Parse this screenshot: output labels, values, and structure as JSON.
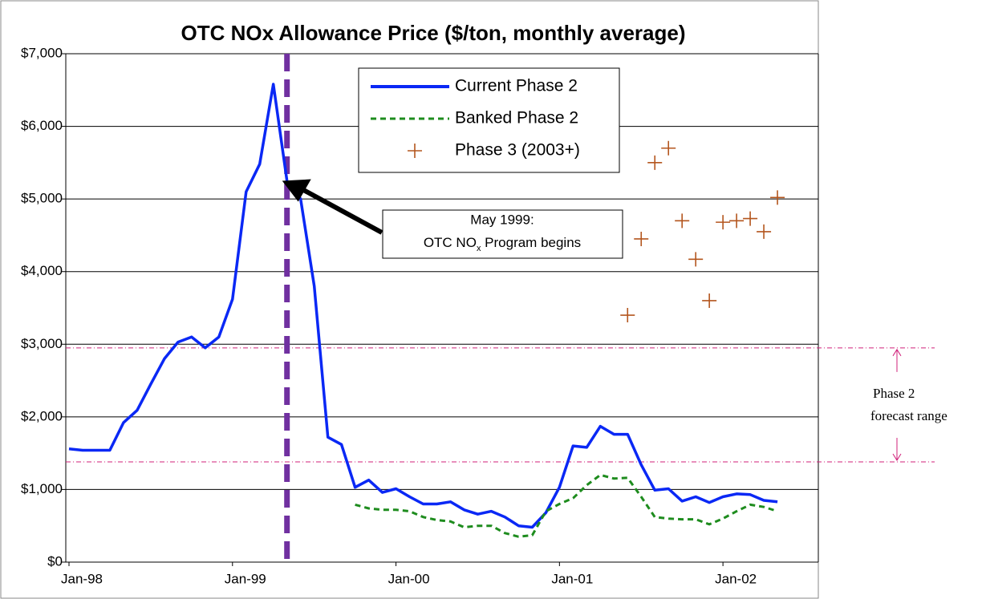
{
  "chart_data": {
    "type": "line",
    "title": "OTC NOx Allowance Price ($/ton, monthly average)",
    "x": [
      "1998-01",
      "1998-02",
      "1998-03",
      "1998-04",
      "1998-05",
      "1998-06",
      "1998-07",
      "1998-08",
      "1998-09",
      "1998-10",
      "1998-11",
      "1998-12",
      "1999-01",
      "1999-02",
      "1999-03",
      "1999-04",
      "1999-05",
      "1999-06",
      "1999-07",
      "1999-08",
      "1999-09",
      "1999-10",
      "1999-11",
      "1999-12",
      "2000-01",
      "2000-02",
      "2000-03",
      "2000-04",
      "2000-05",
      "2000-06",
      "2000-07",
      "2000-08",
      "2000-09",
      "2000-10",
      "2000-11",
      "2000-12",
      "2001-01",
      "2001-02",
      "2001-03",
      "2001-04",
      "2001-05",
      "2001-06",
      "2001-07",
      "2001-08",
      "2001-09",
      "2001-10",
      "2001-11",
      "2001-12",
      "2002-01",
      "2002-02",
      "2002-03",
      "2002-04",
      "2002-05"
    ],
    "series": [
      {
        "name": "Current Phase 2",
        "color": "#0a28f5",
        "style": "solid",
        "values": [
          1560,
          1540,
          1540,
          1540,
          1920,
          2090,
          2450,
          2800,
          3030,
          3100,
          2950,
          3100,
          3620,
          5100,
          5480,
          6580,
          5250,
          5000,
          3800,
          1720,
          1620,
          1030,
          1130,
          960,
          1010,
          900,
          800,
          800,
          830,
          720,
          660,
          700,
          620,
          500,
          480,
          680,
          1030,
          1600,
          1580,
          1870,
          1760,
          1760,
          1340,
          990,
          1010,
          840,
          900,
          820,
          900,
          940,
          930,
          850,
          830
        ]
      },
      {
        "name": "Banked Phase 2",
        "color": "#1e8c1e",
        "style": "dashed",
        "values": [
          null,
          null,
          null,
          null,
          null,
          null,
          null,
          null,
          null,
          null,
          null,
          null,
          null,
          null,
          null,
          null,
          null,
          null,
          null,
          null,
          null,
          790,
          740,
          720,
          720,
          700,
          620,
          580,
          560,
          480,
          500,
          500,
          400,
          350,
          370,
          700,
          800,
          880,
          1060,
          1200,
          1150,
          1160,
          900,
          620,
          600,
          590,
          590,
          520,
          600,
          700,
          790,
          760,
          700
        ]
      },
      {
        "name": "Phase 3 (2003+)",
        "color": "#b4561e",
        "style": "marker",
        "values": [
          null,
          null,
          null,
          null,
          null,
          null,
          null,
          null,
          null,
          null,
          null,
          null,
          null,
          null,
          null,
          null,
          null,
          null,
          null,
          null,
          null,
          null,
          null,
          null,
          null,
          null,
          null,
          null,
          null,
          null,
          null,
          null,
          null,
          null,
          null,
          null,
          null,
          null,
          null,
          null,
          null,
          3400,
          4450,
          5500,
          5700,
          4700,
          4170,
          3600,
          4680,
          4700,
          4730,
          4550,
          5020
        ]
      }
    ],
    "xlim": [
      "1998-01",
      "2002-08"
    ],
    "xticks": [
      {
        "value": "1998-01",
        "label": "Jan-98"
      },
      {
        "value": "1999-01",
        "label": "Jan-99"
      },
      {
        "value": "2000-01",
        "label": "Jan-00"
      },
      {
        "value": "2001-01",
        "label": "Jan-01"
      },
      {
        "value": "2002-01",
        "label": "Jan-02"
      }
    ],
    "ylim": [
      0,
      7000
    ],
    "yticks": [
      {
        "value": 0,
        "label": "$0"
      },
      {
        "value": 1000,
        "label": "$1,000"
      },
      {
        "value": 2000,
        "label": "$2,000"
      },
      {
        "value": 3000,
        "label": "$3,000"
      },
      {
        "value": 4000,
        "label": "$4,000"
      },
      {
        "value": 5000,
        "label": "$5,000"
      },
      {
        "value": 6000,
        "label": "$6,000"
      },
      {
        "value": 7000,
        "label": "$7,000"
      }
    ],
    "grid": true,
    "legend": "top",
    "event": {
      "x": "1999-05",
      "color": "#7030a0",
      "line1": "May 1999:",
      "line2_prefix": "OTC NO",
      "line2_sub": "x",
      "line2_suffix": " Program begins"
    },
    "forecast_range": {
      "label1": "Phase 2",
      "label2": "forecast range",
      "values": [
        2950,
        1380
      ],
      "color": "#d0207a"
    }
  }
}
